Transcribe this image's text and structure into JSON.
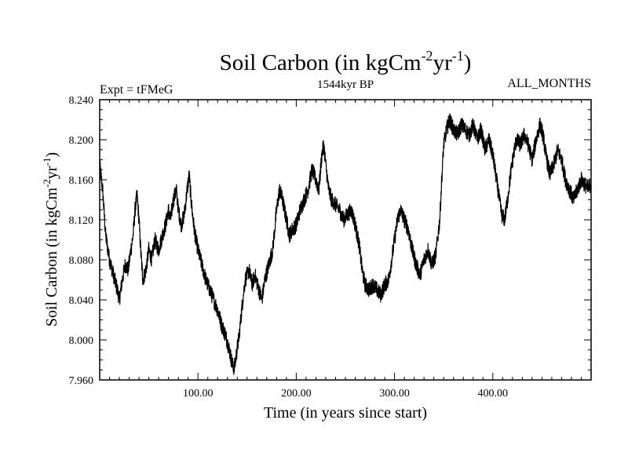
{
  "chart_data": {
    "type": "line",
    "title": "Soil Carbon (in kgCm",
    "title_exp1": "-2",
    "title_mid": "yr",
    "title_exp2": "-1",
    "title_end": ")",
    "left_label": "Expt = tFMeG",
    "center_label": "1544kyr BP",
    "right_label": "ALL_MONTHS",
    "xlabel": "Time (in years since start)",
    "ylabel": {
      "base": "Soil Carbon (in kgCm",
      "exp1": "-2",
      "mid": "yr",
      "exp2": "-1",
      "end": ")"
    },
    "xlim": [
      0,
      500
    ],
    "ylim": [
      7.96,
      8.24
    ],
    "x_ticks": [
      100,
      200,
      300,
      400
    ],
    "x_tick_labels": [
      "100.00",
      "200.00",
      "300.00",
      "400.00"
    ],
    "y_ticks": [
      7.96,
      8.0,
      8.04,
      8.08,
      8.12,
      8.16,
      8.2,
      8.24
    ],
    "y_tick_labels": [
      "7.960",
      "8.000",
      "8.040",
      "8.080",
      "8.120",
      "8.160",
      "8.200",
      "8.240"
    ],
    "series": [
      {
        "name": "Soil Carbon",
        "color": "#000000",
        "noise_amplitude": 0.008,
        "points": [
          [
            0,
            8.175
          ],
          [
            3,
            8.15
          ],
          [
            6,
            8.105
          ],
          [
            10,
            8.08
          ],
          [
            14,
            8.065
          ],
          [
            18,
            8.05
          ],
          [
            20,
            8.04
          ],
          [
            23,
            8.06
          ],
          [
            26,
            8.075
          ],
          [
            29,
            8.07
          ],
          [
            31,
            8.085
          ],
          [
            34,
            8.105
          ],
          [
            36,
            8.13
          ],
          [
            38,
            8.145
          ],
          [
            40,
            8.12
          ],
          [
            42,
            8.085
          ],
          [
            44,
            8.06
          ],
          [
            47,
            8.07
          ],
          [
            50,
            8.09
          ],
          [
            53,
            8.08
          ],
          [
            56,
            8.1
          ],
          [
            60,
            8.09
          ],
          [
            64,
            8.105
          ],
          [
            67,
            8.115
          ],
          [
            70,
            8.13
          ],
          [
            72,
            8.12
          ],
          [
            75,
            8.14
          ],
          [
            78,
            8.15
          ],
          [
            80,
            8.13
          ],
          [
            83,
            8.115
          ],
          [
            86,
            8.125
          ],
          [
            89,
            8.15
          ],
          [
            91,
            8.165
          ],
          [
            93,
            8.14
          ],
          [
            95,
            8.12
          ],
          [
            97,
            8.105
          ],
          [
            100,
            8.09
          ],
          [
            104,
            8.075
          ],
          [
            108,
            8.06
          ],
          [
            112,
            8.05
          ],
          [
            116,
            8.04
          ],
          [
            120,
            8.03
          ],
          [
            124,
            8.015
          ],
          [
            128,
            8.005
          ],
          [
            132,
            7.99
          ],
          [
            135,
            7.975
          ],
          [
            137,
            7.972
          ],
          [
            139,
            7.985
          ],
          [
            142,
            8.005
          ],
          [
            145,
            8.035
          ],
          [
            148,
            8.06
          ],
          [
            152,
            8.07
          ],
          [
            155,
            8.055
          ],
          [
            158,
            8.065
          ],
          [
            162,
            8.05
          ],
          [
            165,
            8.04
          ],
          [
            168,
            8.06
          ],
          [
            172,
            8.075
          ],
          [
            176,
            8.09
          ],
          [
            180,
            8.13
          ],
          [
            183,
            8.15
          ],
          [
            186,
            8.14
          ],
          [
            190,
            8.12
          ],
          [
            193,
            8.105
          ],
          [
            196,
            8.11
          ],
          [
            200,
            8.115
          ],
          [
            204,
            8.13
          ],
          [
            208,
            8.14
          ],
          [
            212,
            8.15
          ],
          [
            216,
            8.17
          ],
          [
            220,
            8.16
          ],
          [
            223,
            8.15
          ],
          [
            226,
            8.185
          ],
          [
            228,
            8.195
          ],
          [
            230,
            8.175
          ],
          [
            233,
            8.15
          ],
          [
            236,
            8.14
          ],
          [
            240,
            8.135
          ],
          [
            244,
            8.13
          ],
          [
            248,
            8.12
          ],
          [
            252,
            8.125
          ],
          [
            256,
            8.13
          ],
          [
            260,
            8.115
          ],
          [
            264,
            8.095
          ],
          [
            267,
            8.07
          ],
          [
            270,
            8.055
          ],
          [
            274,
            8.05
          ],
          [
            278,
            8.055
          ],
          [
            282,
            8.05
          ],
          [
            286,
            8.045
          ],
          [
            290,
            8.055
          ],
          [
            294,
            8.06
          ],
          [
            297,
            8.08
          ],
          [
            300,
            8.1
          ],
          [
            303,
            8.12
          ],
          [
            306,
            8.13
          ],
          [
            310,
            8.12
          ],
          [
            314,
            8.11
          ],
          [
            318,
            8.09
          ],
          [
            322,
            8.075
          ],
          [
            326,
            8.065
          ],
          [
            330,
            8.08
          ],
          [
            334,
            8.09
          ],
          [
            338,
            8.075
          ],
          [
            342,
            8.085
          ],
          [
            346,
            8.12
          ],
          [
            348,
            8.16
          ],
          [
            350,
            8.195
          ],
          [
            353,
            8.21
          ],
          [
            356,
            8.22
          ],
          [
            360,
            8.21
          ],
          [
            364,
            8.205
          ],
          [
            368,
            8.215
          ],
          [
            372,
            8.21
          ],
          [
            376,
            8.205
          ],
          [
            380,
            8.215
          ],
          [
            384,
            8.2
          ],
          [
            388,
            8.21
          ],
          [
            392,
            8.19
          ],
          [
            396,
            8.2
          ],
          [
            400,
            8.185
          ],
          [
            403,
            8.165
          ],
          [
            406,
            8.145
          ],
          [
            409,
            8.125
          ],
          [
            412,
            8.12
          ],
          [
            415,
            8.14
          ],
          [
            418,
            8.165
          ],
          [
            421,
            8.185
          ],
          [
            424,
            8.2
          ],
          [
            428,
            8.195
          ],
          [
            432,
            8.205
          ],
          [
            436,
            8.195
          ],
          [
            440,
            8.18
          ],
          [
            444,
            8.2
          ],
          [
            448,
            8.215
          ],
          [
            451,
            8.205
          ],
          [
            454,
            8.185
          ],
          [
            458,
            8.165
          ],
          [
            462,
            8.175
          ],
          [
            466,
            8.19
          ],
          [
            470,
            8.18
          ],
          [
            474,
            8.16
          ],
          [
            478,
            8.15
          ],
          [
            482,
            8.14
          ],
          [
            486,
            8.15
          ],
          [
            490,
            8.16
          ],
          [
            494,
            8.155
          ],
          [
            497,
            8.15
          ],
          [
            500,
            8.158
          ]
        ]
      }
    ]
  }
}
